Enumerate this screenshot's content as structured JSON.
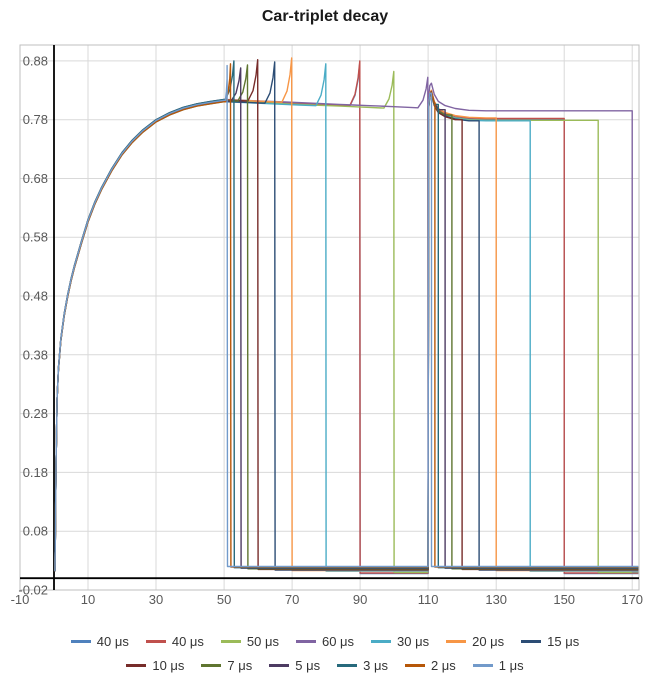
{
  "chart_data": {
    "type": "line",
    "title": "Car-triplet decay",
    "xlabel": "",
    "ylabel": "",
    "xlim": [
      -10,
      172
    ],
    "ylim": [
      -0.02,
      0.907
    ],
    "grid": true,
    "legend_position": "bottom",
    "legend_rows": [
      7,
      6
    ],
    "grid_color": "#D9D9D9",
    "border_color": "#BFBFBF",
    "axis_color": "#000000",
    "tick_label_color": "#595959",
    "x_ticks": [
      -10,
      10,
      30,
      50,
      70,
      90,
      110,
      130,
      150,
      170
    ],
    "x_tick_labels": [
      "-10",
      "10",
      "30",
      "50",
      "70",
      "90",
      "110",
      "130",
      "150",
      "170"
    ],
    "y_ticks": [
      -0.02,
      0.08,
      0.18,
      0.28,
      0.38,
      0.48,
      0.58,
      0.68,
      0.78,
      0.88
    ],
    "y_tick_labels": [
      "-0.02",
      "0.08",
      "0.18",
      "0.28",
      "0.38",
      "0.48",
      "0.58",
      "0.68",
      "0.78",
      "0.88"
    ],
    "rise_profile": [
      [
        0.3,
        0.012
      ],
      [
        0.6,
        0.2
      ],
      [
        0.9,
        0.305
      ],
      [
        1.3,
        0.355
      ],
      [
        2,
        0.405
      ],
      [
        3,
        0.448
      ],
      [
        4,
        0.48
      ],
      [
        5,
        0.507
      ],
      [
        6,
        0.53
      ],
      [
        8,
        0.57
      ],
      [
        10,
        0.608
      ],
      [
        12,
        0.638
      ],
      [
        14,
        0.663
      ],
      [
        17,
        0.695
      ],
      [
        20,
        0.722
      ],
      [
        23,
        0.743
      ],
      [
        26,
        0.76
      ],
      [
        30,
        0.778
      ],
      [
        34,
        0.79
      ],
      [
        38,
        0.799
      ],
      [
        42,
        0.805
      ],
      [
        46,
        0.809
      ],
      [
        50,
        0.8125
      ]
    ],
    "plateau1_y50": 0.8125,
    "plateau1_slope": 0.00025,
    "spike_ramp_width": 3,
    "phase2_rejoin_x": 110,
    "phase2_profile_delta": [
      [
        110.15,
        0.022
      ],
      [
        110.5,
        0.043
      ],
      [
        110.95,
        0.047
      ],
      [
        111.8,
        0.028
      ],
      [
        113,
        0.016
      ],
      [
        115,
        0.009
      ],
      [
        118,
        0.004
      ],
      [
        122,
        0.001
      ],
      [
        127,
        0.0
      ]
    ],
    "x_end": 171.8,
    "series": [
      {
        "label": "40 μs",
        "color": "#4F81BD",
        "delay_us": 40,
        "spike_x": 90,
        "peak_y": 0.876,
        "drop_x": 150,
        "plateau_y": 0.78,
        "zero_y": 0.008,
        "rise_offset": 0.0
      },
      {
        "label": "40 μs",
        "color": "#C0504D",
        "delay_us": 40,
        "spike_x": 90,
        "peak_y": 0.88,
        "drop_x": 150,
        "plateau_y": 0.782,
        "zero_y": 0.009,
        "rise_offset": 0.001
      },
      {
        "label": "50 μs",
        "color": "#9BBB59",
        "delay_us": 50,
        "spike_x": 100,
        "peak_y": 0.862,
        "drop_x": 160,
        "plateau_y": 0.779,
        "zero_y": 0.01,
        "rise_offset": -0.001
      },
      {
        "label": "60 μs",
        "color": "#8064A2",
        "delay_us": 60,
        "spike_x": 110,
        "peak_y": 0.852,
        "drop_x": 170,
        "plateau_y": 0.795,
        "zero_y": 0.011,
        "rise_offset": 0.002
      },
      {
        "label": "30 μs",
        "color": "#4BACC6",
        "delay_us": 30,
        "spike_x": 80,
        "peak_y": 0.875,
        "drop_x": 140,
        "plateau_y": 0.778,
        "zero_y": 0.012,
        "rise_offset": -0.002
      },
      {
        "label": "20 μs",
        "color": "#F79646",
        "delay_us": 20,
        "spike_x": 70,
        "peak_y": 0.885,
        "drop_x": 130,
        "plateau_y": 0.783,
        "zero_y": 0.013,
        "rise_offset": 0.0015
      },
      {
        "label": "15 μs",
        "color": "#2C4D75",
        "delay_us": 15,
        "spike_x": 65,
        "peak_y": 0.878,
        "drop_x": 125,
        "plateau_y": 0.777,
        "zero_y": 0.014,
        "rise_offset": -0.0015
      },
      {
        "label": "10 μs",
        "color": "#772C2A",
        "delay_us": 10,
        "spike_x": 60,
        "peak_y": 0.882,
        "drop_x": 120,
        "plateau_y": 0.776,
        "zero_y": 0.015,
        "rise_offset": 0.001
      },
      {
        "label": "7 μs",
        "color": "#5F7530",
        "delay_us": 7,
        "spike_x": 57,
        "peak_y": 0.873,
        "drop_x": 117,
        "plateau_y": 0.779,
        "zero_y": 0.016,
        "rise_offset": 0.0
      },
      {
        "label": "5 μs",
        "color": "#4D3B62",
        "delay_us": 5,
        "spike_x": 55,
        "peak_y": 0.868,
        "drop_x": 115,
        "plateau_y": 0.781,
        "zero_y": 0.017,
        "rise_offset": -0.001
      },
      {
        "label": "3 μs",
        "color": "#276A7C",
        "delay_us": 3,
        "spike_x": 53,
        "peak_y": 0.88,
        "drop_x": 113,
        "plateau_y": 0.778,
        "zero_y": 0.018,
        "rise_offset": 0.002
      },
      {
        "label": "2 μs",
        "color": "#B65708",
        "delay_us": 2,
        "spike_x": 52,
        "peak_y": 0.875,
        "drop_x": 112,
        "plateau_y": 0.78,
        "zero_y": 0.019,
        "rise_offset": -0.002
      },
      {
        "label": "1 μs",
        "color": "#729ACA",
        "delay_us": 1,
        "spike_x": 51,
        "peak_y": 0.872,
        "drop_x": 111,
        "plateau_y": 0.782,
        "zero_y": 0.02,
        "rise_offset": 0.0005
      }
    ]
  }
}
